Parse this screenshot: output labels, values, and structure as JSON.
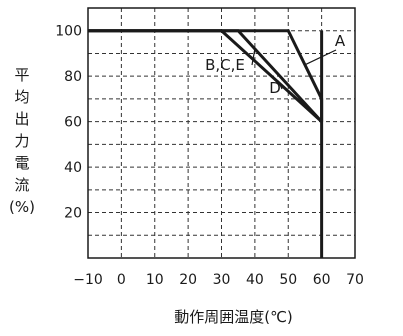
{
  "chart_data": {
    "type": "line",
    "title": "",
    "xlabel": "動作周囲温度(℃)",
    "ylabel": "平均出力電流(%)",
    "xlim": [
      -10,
      70
    ],
    "ylim": [
      0,
      110
    ],
    "x_ticks": [
      -10,
      0,
      10,
      20,
      30,
      40,
      50,
      60,
      70
    ],
    "y_ticks": [
      20,
      40,
      60,
      80,
      100
    ],
    "x_tick_labels": [
      "−10",
      "0",
      "10",
      "20",
      "30",
      "40",
      "50",
      "60",
      "70"
    ],
    "y_tick_labels": [
      "20",
      "40",
      "60",
      "80",
      "100"
    ],
    "grid": true,
    "grid_style": "dashed",
    "cutoff_line": {
      "x": 60,
      "y_from": 0,
      "y_to": 100
    },
    "series": [
      {
        "name": "A",
        "x": [
          -10,
          50,
          60,
          60
        ],
        "y": [
          100,
          100,
          70,
          60
        ]
      },
      {
        "name": "B,C,E",
        "x": [
          -10,
          35,
          60
        ],
        "y": [
          100,
          100,
          60
        ]
      },
      {
        "name": "D",
        "x": [
          -10,
          30,
          60
        ],
        "y": [
          100,
          100,
          60
        ]
      }
    ],
    "annotations": [
      {
        "text": "A",
        "series": "A",
        "anchor_x": 55,
        "anchor_y": 85
      },
      {
        "text": "B,C,E",
        "series": "B,C,E",
        "anchor_x": 40,
        "anchor_y": 92
      },
      {
        "text": "D",
        "series": "D",
        "anchor_x": 47,
        "anchor_y": 78
      }
    ]
  },
  "colors": {
    "line": "#1a1a1a",
    "grid": "#333333",
    "background": "#ffffff"
  }
}
